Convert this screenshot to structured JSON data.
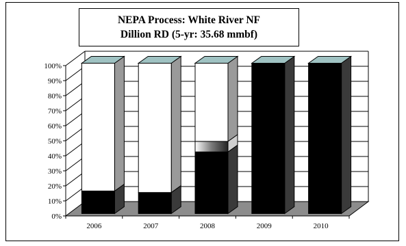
{
  "chart_data": {
    "type": "bar",
    "stacked": true,
    "three_d": true,
    "title": "NEPA Process: White River NF",
    "subtitle": "Dillion RD (5-yr: 35.68 mmbf)",
    "categories": [
      "2006",
      "2007",
      "2008",
      "2009",
      "2010"
    ],
    "yticks": [
      "0%",
      "10%",
      "20%",
      "30%",
      "40%",
      "50%",
      "60%",
      "70%",
      "80%",
      "90%",
      "100%"
    ],
    "ylim": [
      0,
      100
    ],
    "series": [
      {
        "values": [
          15,
          14,
          41,
          100,
          100
        ],
        "color": "#000000"
      },
      {
        "values": [
          0,
          0,
          7,
          0,
          0
        ],
        "color": "#b0b0b0",
        "pattern": "gradient"
      },
      {
        "values": [
          85,
          86,
          52,
          0,
          0
        ],
        "color": "#ffffff"
      }
    ],
    "top_face_color": "#9fc2c2",
    "side_face_color": "#3a3a3a",
    "floor_color": "#8c8c8c",
    "grid": true
  }
}
